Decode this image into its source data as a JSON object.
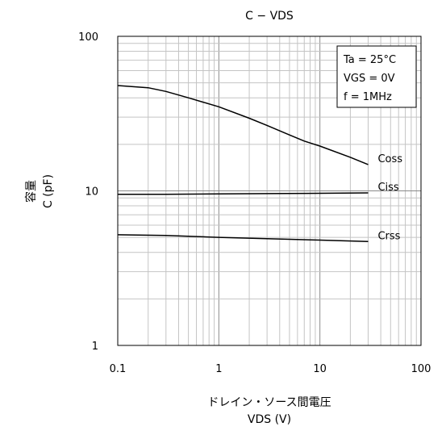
{
  "chart_data": {
    "type": "line",
    "title": "C − VDS",
    "xlabel": "ドレイン・ソース間電圧",
    "xlabel_sub": "VDS (V)",
    "ylabel": "容量",
    "ylabel_sub": "C (pF)",
    "x_scale": "log",
    "y_scale": "log",
    "xlim": [
      0.1,
      100
    ],
    "ylim": [
      1,
      100
    ],
    "x_ticks": [
      "0.1",
      "1",
      "10",
      "100"
    ],
    "y_ticks": [
      "1",
      "10",
      "100"
    ],
    "grid": true,
    "annotation": [
      "Ta = 25°C",
      "VGS = 0V",
      "f = 1MHz"
    ],
    "series": [
      {
        "name": "Coss",
        "x": [
          0.1,
          0.2,
          0.3,
          0.5,
          0.7,
          1,
          2,
          3,
          5,
          7,
          10,
          20,
          30
        ],
        "y": [
          48,
          46.5,
          44,
          40,
          37.5,
          35,
          29.5,
          26.5,
          23,
          21,
          19.5,
          16.5,
          14.8
        ]
      },
      {
        "name": "Ciss",
        "x": [
          0.1,
          0.3,
          1,
          3,
          10,
          30
        ],
        "y": [
          9.5,
          9.5,
          9.55,
          9.6,
          9.65,
          9.7
        ]
      },
      {
        "name": "Crss",
        "x": [
          0.1,
          0.3,
          1,
          3,
          10,
          30
        ],
        "y": [
          5.2,
          5.15,
          5.0,
          4.9,
          4.8,
          4.7
        ]
      }
    ]
  }
}
